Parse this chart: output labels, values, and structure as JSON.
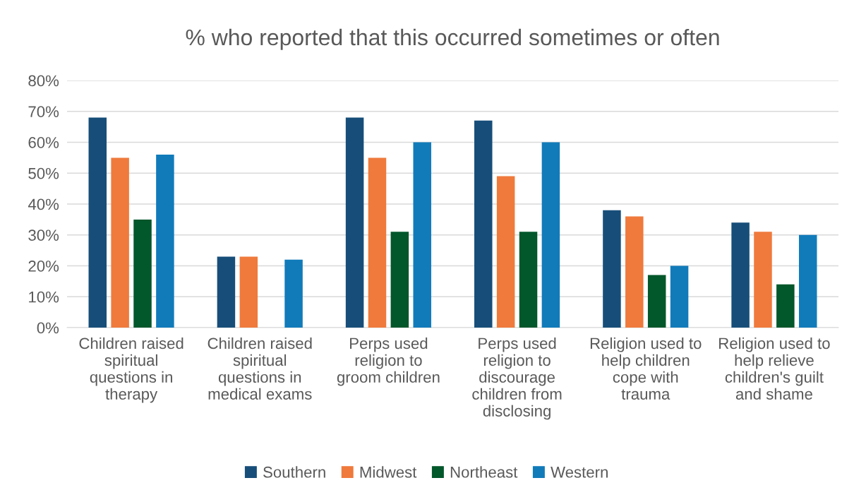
{
  "chart_data": {
    "type": "bar",
    "title": "% who reported that this occurred sometimes or often",
    "categories": [
      "Children raised spiritual questions in therapy",
      "Children raised spiritual questions in medical exams",
      "Perps used religion to groom children",
      "Perps used religion to discourage children from disclosing",
      "Religion used to help children cope with trauma",
      "Religion used to help relieve children's guilt and shame"
    ],
    "series": [
      {
        "name": "Southern",
        "color": "#174e79",
        "values": [
          68,
          23,
          68,
          67,
          38,
          34
        ]
      },
      {
        "name": "Midwest",
        "color": "#ef7a3c",
        "values": [
          55,
          23,
          55,
          49,
          36,
          31
        ]
      },
      {
        "name": "Northeast",
        "color": "#02572b",
        "values": [
          35,
          null,
          31,
          31,
          17,
          14
        ]
      },
      {
        "name": "Western",
        "color": "#117bba",
        "values": [
          56,
          22,
          60,
          60,
          20,
          30
        ]
      }
    ],
    "ylim": [
      0,
      80
    ],
    "yticks": [
      {
        "value": 0,
        "label": "0%"
      },
      {
        "value": 10,
        "label": "10%"
      },
      {
        "value": 20,
        "label": "20%"
      },
      {
        "value": 30,
        "label": "30%"
      },
      {
        "value": 40,
        "label": "40%"
      },
      {
        "value": 50,
        "label": "50%"
      },
      {
        "value": 60,
        "label": "60%"
      },
      {
        "value": 70,
        "label": "70%"
      },
      {
        "value": 80,
        "label": "80%"
      }
    ],
    "grid": "y",
    "legend": "bottom"
  }
}
